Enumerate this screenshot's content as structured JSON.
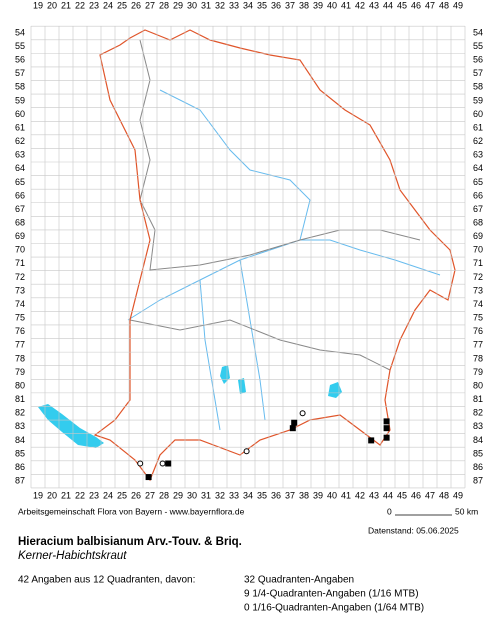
{
  "map": {
    "columns": [
      19,
      20,
      21,
      22,
      23,
      24,
      25,
      26,
      27,
      28,
      29,
      30,
      31,
      32,
      33,
      34,
      35,
      36,
      37,
      38,
      39,
      40,
      41,
      42,
      43,
      44,
      45,
      46,
      47,
      48,
      49
    ],
    "rows": [
      54,
      55,
      56,
      57,
      58,
      59,
      60,
      61,
      62,
      63,
      64,
      65,
      66,
      67,
      68,
      69,
      70,
      71,
      72,
      73,
      74,
      75,
      76,
      77,
      78,
      79,
      80,
      81,
      82,
      83,
      84,
      85,
      86,
      87
    ],
    "records": [
      {
        "col": 37.2,
        "row": 83.1,
        "symbol": "square"
      },
      {
        "col": 37.3,
        "row": 82.7,
        "symbol": "square"
      },
      {
        "col": 43.9,
        "row": 82.6,
        "symbol": "square"
      },
      {
        "col": 43.9,
        "row": 83.1,
        "symbol": "square"
      },
      {
        "col": 43.9,
        "row": 83.8,
        "symbol": "square"
      },
      {
        "col": 42.8,
        "row": 84.0,
        "symbol": "square"
      },
      {
        "col": 28.3,
        "row": 85.7,
        "symbol": "square"
      },
      {
        "col": 26.9,
        "row": 86.7,
        "symbol": "square"
      },
      {
        "col": 26.3,
        "row": 85.7,
        "symbol": "circle"
      },
      {
        "col": 27.9,
        "row": 85.7,
        "symbol": "circle"
      },
      {
        "col": 33.9,
        "row": 84.8,
        "symbol": "circle"
      },
      {
        "col": 37.9,
        "row": 82.0,
        "symbol": "circle"
      }
    ]
  },
  "credit": "Arbeitsgemeinschaft Flora von Bayern - www.bayernflora.de",
  "scale": {
    "start": "0",
    "end": "50 km"
  },
  "date": "Datenstand: 05.06.2025",
  "species": {
    "name": "Hieracium balbisianum Arv.-Touv. & Briq.",
    "common": "Kerner-Habichtskraut"
  },
  "stats": {
    "total": "42 Angaben aus 12 Quadranten, davon:",
    "lines": [
      "32 Quadranten-Angaben",
      "9 1/4-Quadranten-Angaben (1/16 MTB)",
      "0 1/16-Quadranten-Angaben (1/64 MTB)"
    ]
  }
}
